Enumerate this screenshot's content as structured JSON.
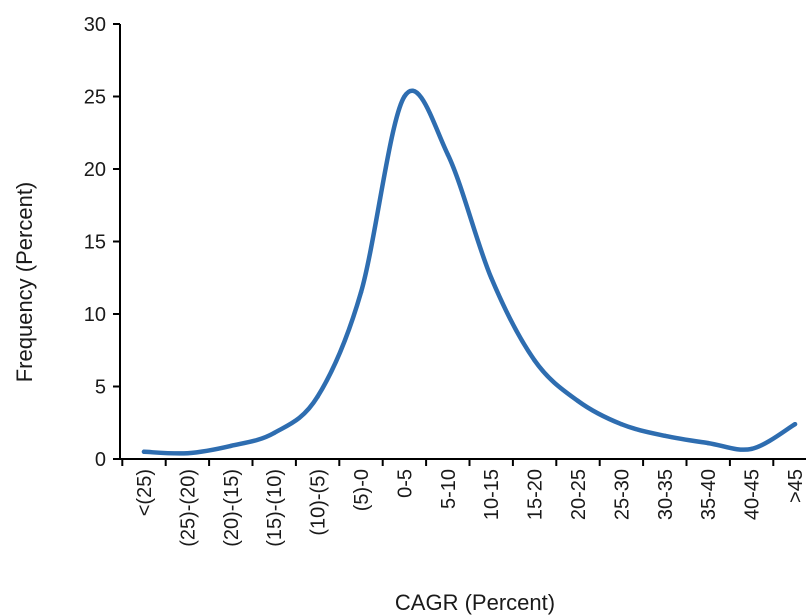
{
  "chart_data": {
    "type": "line",
    "title": "",
    "xlabel": "CAGR (Percent)",
    "ylabel": "Frequency (Percent)",
    "categories": [
      "<(25)",
      "(25)-(20)",
      "(20)-(15)",
      "(15)-(10)",
      "(10)-(5)",
      "(5)-0",
      "0-5",
      "5-10",
      "10-15",
      "15-20",
      "20-25",
      "25-30",
      "30-35",
      "35-40",
      "40-45",
      ">45"
    ],
    "ylim": [
      0,
      30
    ],
    "yticks": [
      "0",
      "5",
      "10",
      "15",
      "20",
      "25",
      "30"
    ],
    "grid": false,
    "legend": "none",
    "series": [
      {
        "color": "#2e6db0",
        "values": [
          0.5,
          0.4,
          0.9,
          1.8,
          4.3,
          11.5,
          25.0,
          21.0,
          12.5,
          6.8,
          4.0,
          2.4,
          1.6,
          1.1,
          0.7,
          2.4
        ]
      }
    ]
  }
}
